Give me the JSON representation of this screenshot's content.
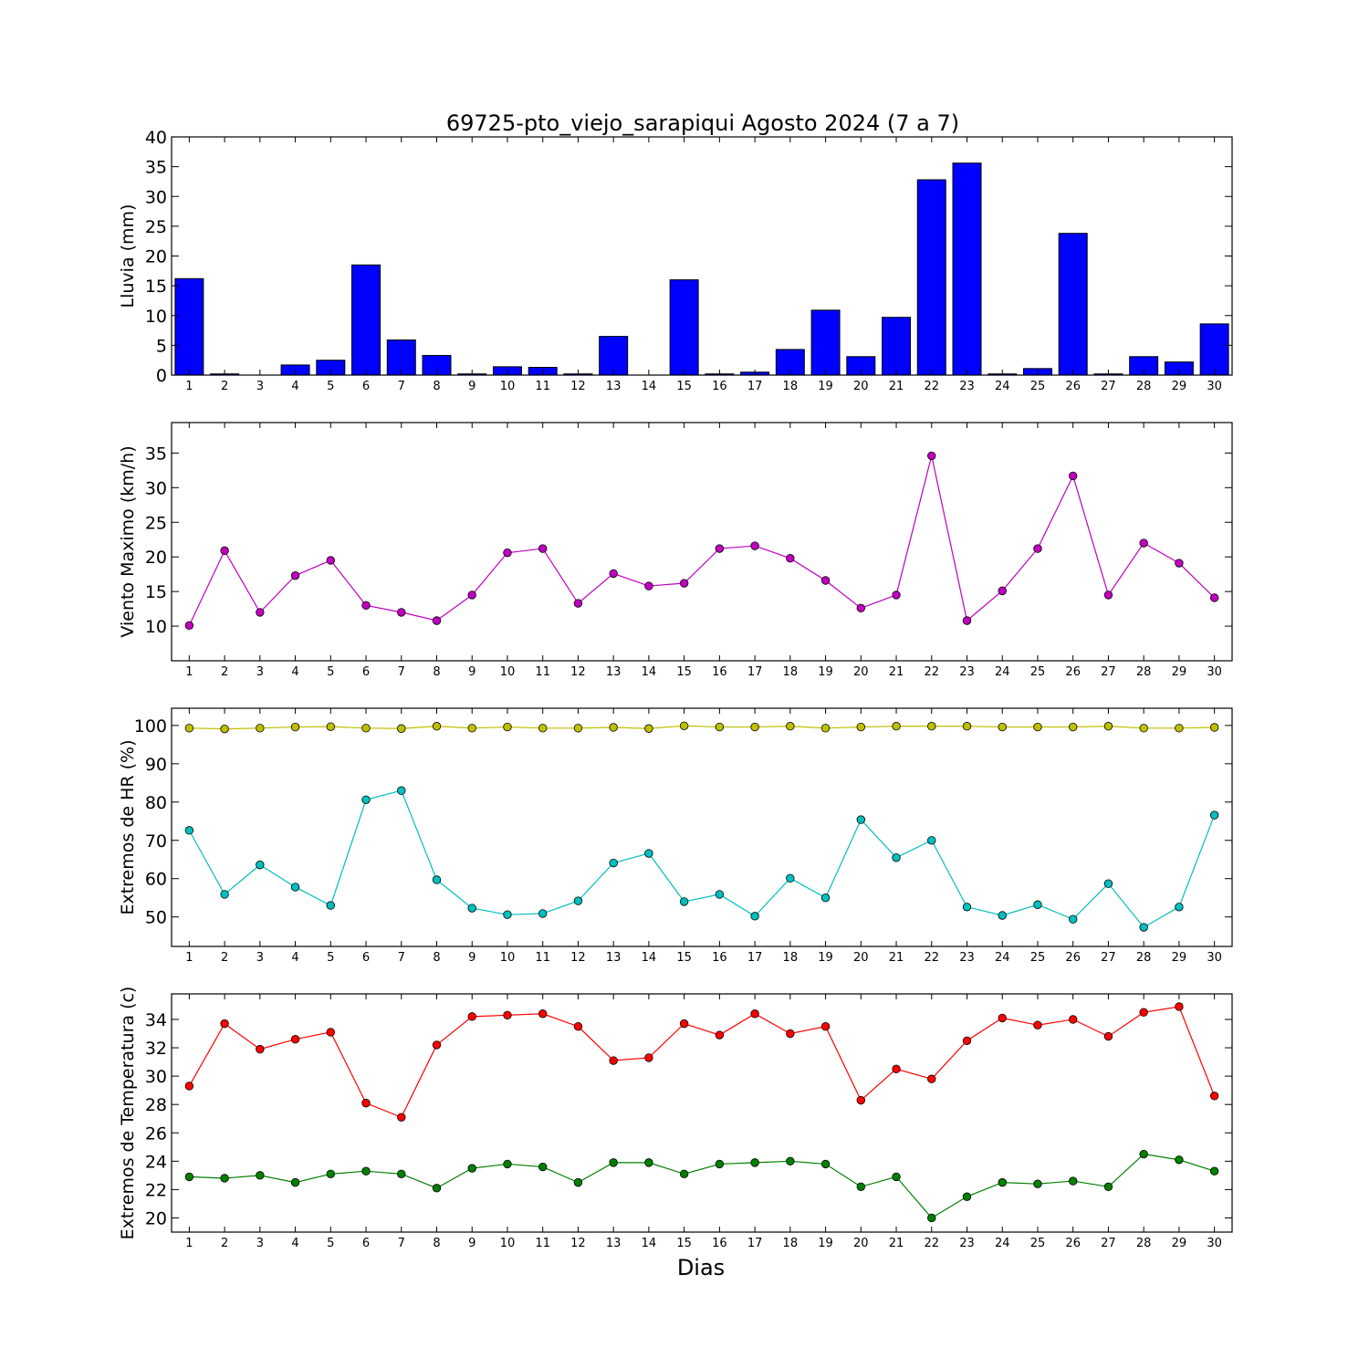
{
  "chart_data": {
    "title": "69725-pto_viejo_sarapiqui Agosto 2024  (7 a 7)",
    "xlabel": "Dias",
    "days": [
      1,
      2,
      3,
      4,
      5,
      6,
      7,
      8,
      9,
      10,
      11,
      12,
      13,
      14,
      15,
      16,
      17,
      18,
      19,
      20,
      21,
      22,
      23,
      24,
      25,
      26,
      27,
      28,
      29,
      30
    ],
    "panels": [
      {
        "id": "lluvia",
        "type": "bar",
        "ylabel": "Lluvia (mm)",
        "ylim": [
          0,
          40
        ],
        "yticks": [
          0,
          5,
          10,
          15,
          20,
          25,
          30,
          35,
          40
        ],
        "series": [
          {
            "color": "#0000ff",
            "values": [
              16.2,
              0.2,
              0.0,
              1.7,
              2.5,
              18.5,
              5.9,
              3.3,
              0.2,
              1.4,
              1.3,
              0.2,
              6.5,
              0.0,
              16.0,
              0.2,
              0.5,
              4.3,
              10.9,
              3.1,
              9.7,
              32.8,
              35.6,
              0.2,
              1.1,
              23.8,
              0.2,
              3.1,
              2.2,
              8.6
            ]
          }
        ]
      },
      {
        "id": "viento",
        "type": "line",
        "ylabel": "Viento Maximo (km/h)",
        "ylim": [
          5,
          39.4
        ],
        "yticks": [
          10,
          15,
          20,
          25,
          30,
          35
        ],
        "series": [
          {
            "color": "#bf00bf",
            "values": [
              10.1,
              20.9,
              12.0,
              17.3,
              19.5,
              13.0,
              12.0,
              10.8,
              14.5,
              20.6,
              21.2,
              13.3,
              17.6,
              15.8,
              16.2,
              21.2,
              21.6,
              19.8,
              16.6,
              12.6,
              14.5,
              34.6,
              10.8,
              15.1,
              21.2,
              31.7,
              14.5,
              22.0,
              19.1,
              14.1
            ]
          }
        ]
      },
      {
        "id": "hr",
        "type": "line",
        "ylabel": "Extremos de HR (%)",
        "ylim": [
          42.3,
          104.5
        ],
        "yticks": [
          50,
          60,
          70,
          80,
          90,
          100
        ],
        "series": [
          {
            "color": "#bfbf00",
            "values": [
              99.3,
              99.1,
              99.3,
              99.6,
              99.7,
              99.3,
              99.2,
              99.8,
              99.3,
              99.6,
              99.3,
              99.3,
              99.5,
              99.2,
              99.9,
              99.6,
              99.6,
              99.8,
              99.3,
              99.6,
              99.8,
              99.8,
              99.8,
              99.6,
              99.6,
              99.6,
              99.8,
              99.3,
              99.3,
              99.5
            ]
          },
          {
            "color": "#00bfbf",
            "values": [
              72.6,
              55.9,
              63.6,
              57.8,
              53.0,
              80.6,
              83.0,
              59.7,
              52.3,
              50.6,
              50.9,
              54.2,
              64.1,
              66.6,
              54.0,
              55.9,
              50.2,
              60.1,
              55.0,
              75.4,
              65.5,
              70.0,
              52.6,
              50.4,
              53.2,
              49.4,
              58.7,
              47.3,
              52.6,
              76.6
            ]
          }
        ]
      },
      {
        "id": "temperatura",
        "type": "line",
        "ylabel": "Extremos de Temperatura (c)",
        "ylim": [
          19.0,
          35.8
        ],
        "yticks": [
          20,
          22,
          24,
          26,
          28,
          30,
          32,
          34
        ],
        "series": [
          {
            "color": "#ff0000",
            "values": [
              29.3,
              33.7,
              31.9,
              32.6,
              33.1,
              28.1,
              27.1,
              32.2,
              34.2,
              34.3,
              34.4,
              33.5,
              31.1,
              31.3,
              33.7,
              32.9,
              34.4,
              33.0,
              33.5,
              28.3,
              30.5,
              29.8,
              32.5,
              34.1,
              33.6,
              34.0,
              32.8,
              34.5,
              34.9,
              28.6
            ]
          },
          {
            "color": "#008000",
            "values": [
              22.9,
              22.8,
              23.0,
              22.5,
              23.1,
              23.3,
              23.1,
              22.1,
              23.5,
              23.8,
              23.6,
              22.5,
              23.9,
              23.9,
              23.1,
              23.8,
              23.9,
              24.0,
              23.8,
              22.2,
              22.9,
              20.0,
              21.5,
              22.5,
              22.4,
              22.6,
              22.2,
              24.5,
              24.1,
              23.3
            ]
          }
        ]
      }
    ]
  }
}
